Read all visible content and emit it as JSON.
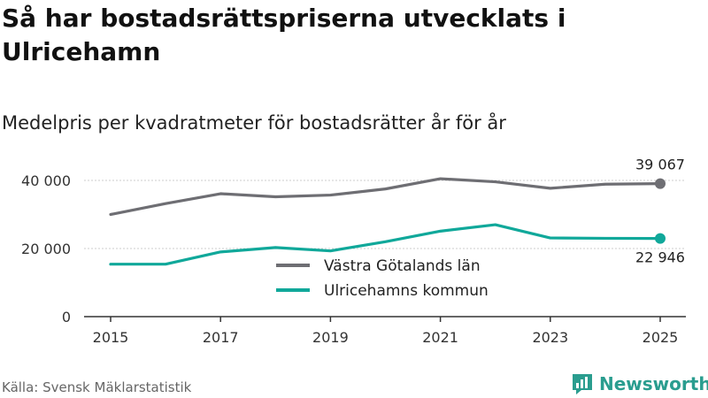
{
  "title": "Så har bostadsrättspriserna utvecklats i Ulricehamn",
  "subtitle": "Medelpris per kvadratmeter för bostadsrätter år för år",
  "source": "Källa: Svensk Mäklarstatistik",
  "brand": "Newsworthy",
  "colors": {
    "vastra": "#6e6e73",
    "ulricehamn": "#10a89a",
    "brand": "#2a9d8f",
    "grid": "#cccccc",
    "axis": "#333333"
  },
  "chart_data": {
    "type": "line",
    "title": "Så har bostadsrättspriserna utvecklats i Ulricehamn",
    "subtitle": "Medelpris per kvadratmeter för bostadsrätter år för år",
    "xlabel": "",
    "ylabel": "",
    "x": [
      2015,
      2016,
      2017,
      2018,
      2019,
      2020,
      2021,
      2022,
      2023,
      2024,
      2025
    ],
    "xticks": [
      "2015",
      "2017",
      "2019",
      "2021",
      "2023",
      "2025"
    ],
    "xlim": [
      2015,
      2025
    ],
    "yticks": [
      0,
      20000,
      40000
    ],
    "ytick_labels": [
      "0",
      "20 000",
      "40 000"
    ],
    "ylim": [
      0,
      40000
    ],
    "grid": true,
    "legend": "center",
    "series": [
      {
        "name": "Västra Götalands län",
        "color": "#6e6e73",
        "values": [
          30000,
          33200,
          36100,
          35200,
          35700,
          37500,
          40500,
          39600,
          37700,
          38900,
          39067
        ],
        "end_label": "39 067"
      },
      {
        "name": "Ulricehamns kommun",
        "color": "#10a89a",
        "values": [
          15400,
          15400,
          19000,
          20300,
          19300,
          22000,
          25100,
          27000,
          23100,
          23000,
          22946
        ],
        "end_label": "22 946"
      }
    ]
  }
}
